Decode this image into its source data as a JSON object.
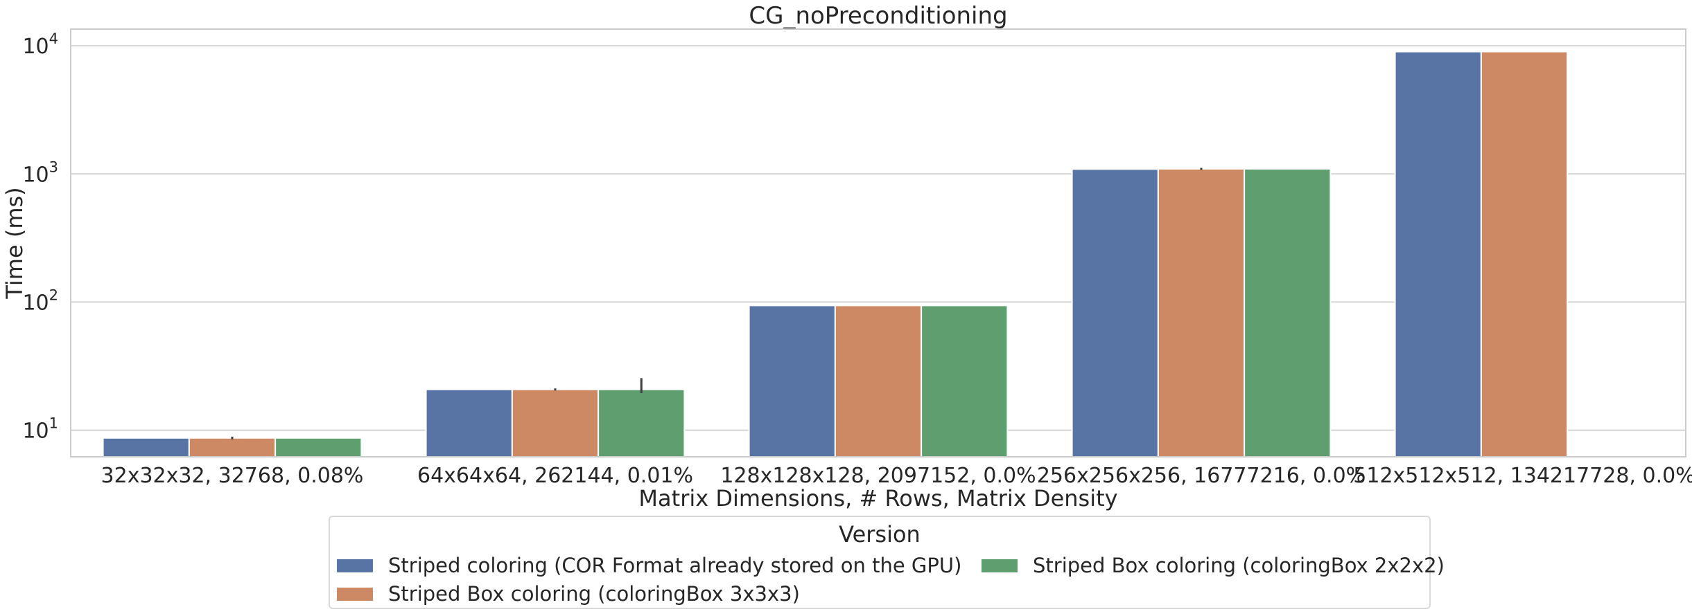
{
  "chart_data": {
    "type": "bar",
    "title": "CG_noPreconditioning",
    "xlabel": "Matrix Dimensions, # Rows, Matrix Density",
    "ylabel": "Time (ms)",
    "yscale": "log",
    "ylim": [
      6.2,
      13500
    ],
    "grid": true,
    "categories": [
      "32x32x32, 32768, 0.08%",
      "64x64x64, 262144, 0.01%",
      "128x128x128, 2097152, 0.0%",
      "256x256x256, 16777216, 0.0%",
      "512x512x512, 134217728, 0.0%"
    ],
    "yticks": [
      {
        "value": 10,
        "base": "10",
        "exp": "1"
      },
      {
        "value": 100,
        "base": "10",
        "exp": "2"
      },
      {
        "value": 1000,
        "base": "10",
        "exp": "3"
      },
      {
        "value": 10000,
        "base": "10",
        "exp": "4"
      }
    ],
    "series": [
      {
        "name": "Striped coloring (COR Format already stored on the GPU)",
        "color": "#5874a4",
        "values": [
          8.7,
          20.8,
          94,
          1090,
          9000
        ],
        "errors": [
          null,
          null,
          null,
          null,
          null
        ]
      },
      {
        "name": "Striped Box coloring (coloringBox 3x3x3)",
        "color": "#cc8963",
        "values": [
          8.7,
          20.8,
          94,
          1095,
          9000
        ],
        "errors": [
          [
            8.5,
            8.9
          ],
          [
            20.4,
            21.2
          ],
          null,
          [
            1075,
            1115
          ],
          null
        ]
      },
      {
        "name": "Striped Box coloring (coloringBox 2x2x2)",
        "color": "#5f9e6e",
        "values": [
          8.7,
          20.8,
          94,
          1095,
          null
        ],
        "errors": [
          null,
          [
            19.5,
            25.5
          ],
          null,
          null,
          null
        ]
      }
    ],
    "legend": {
      "title": "Version",
      "placement": "bottom-center",
      "columns": 2
    }
  }
}
